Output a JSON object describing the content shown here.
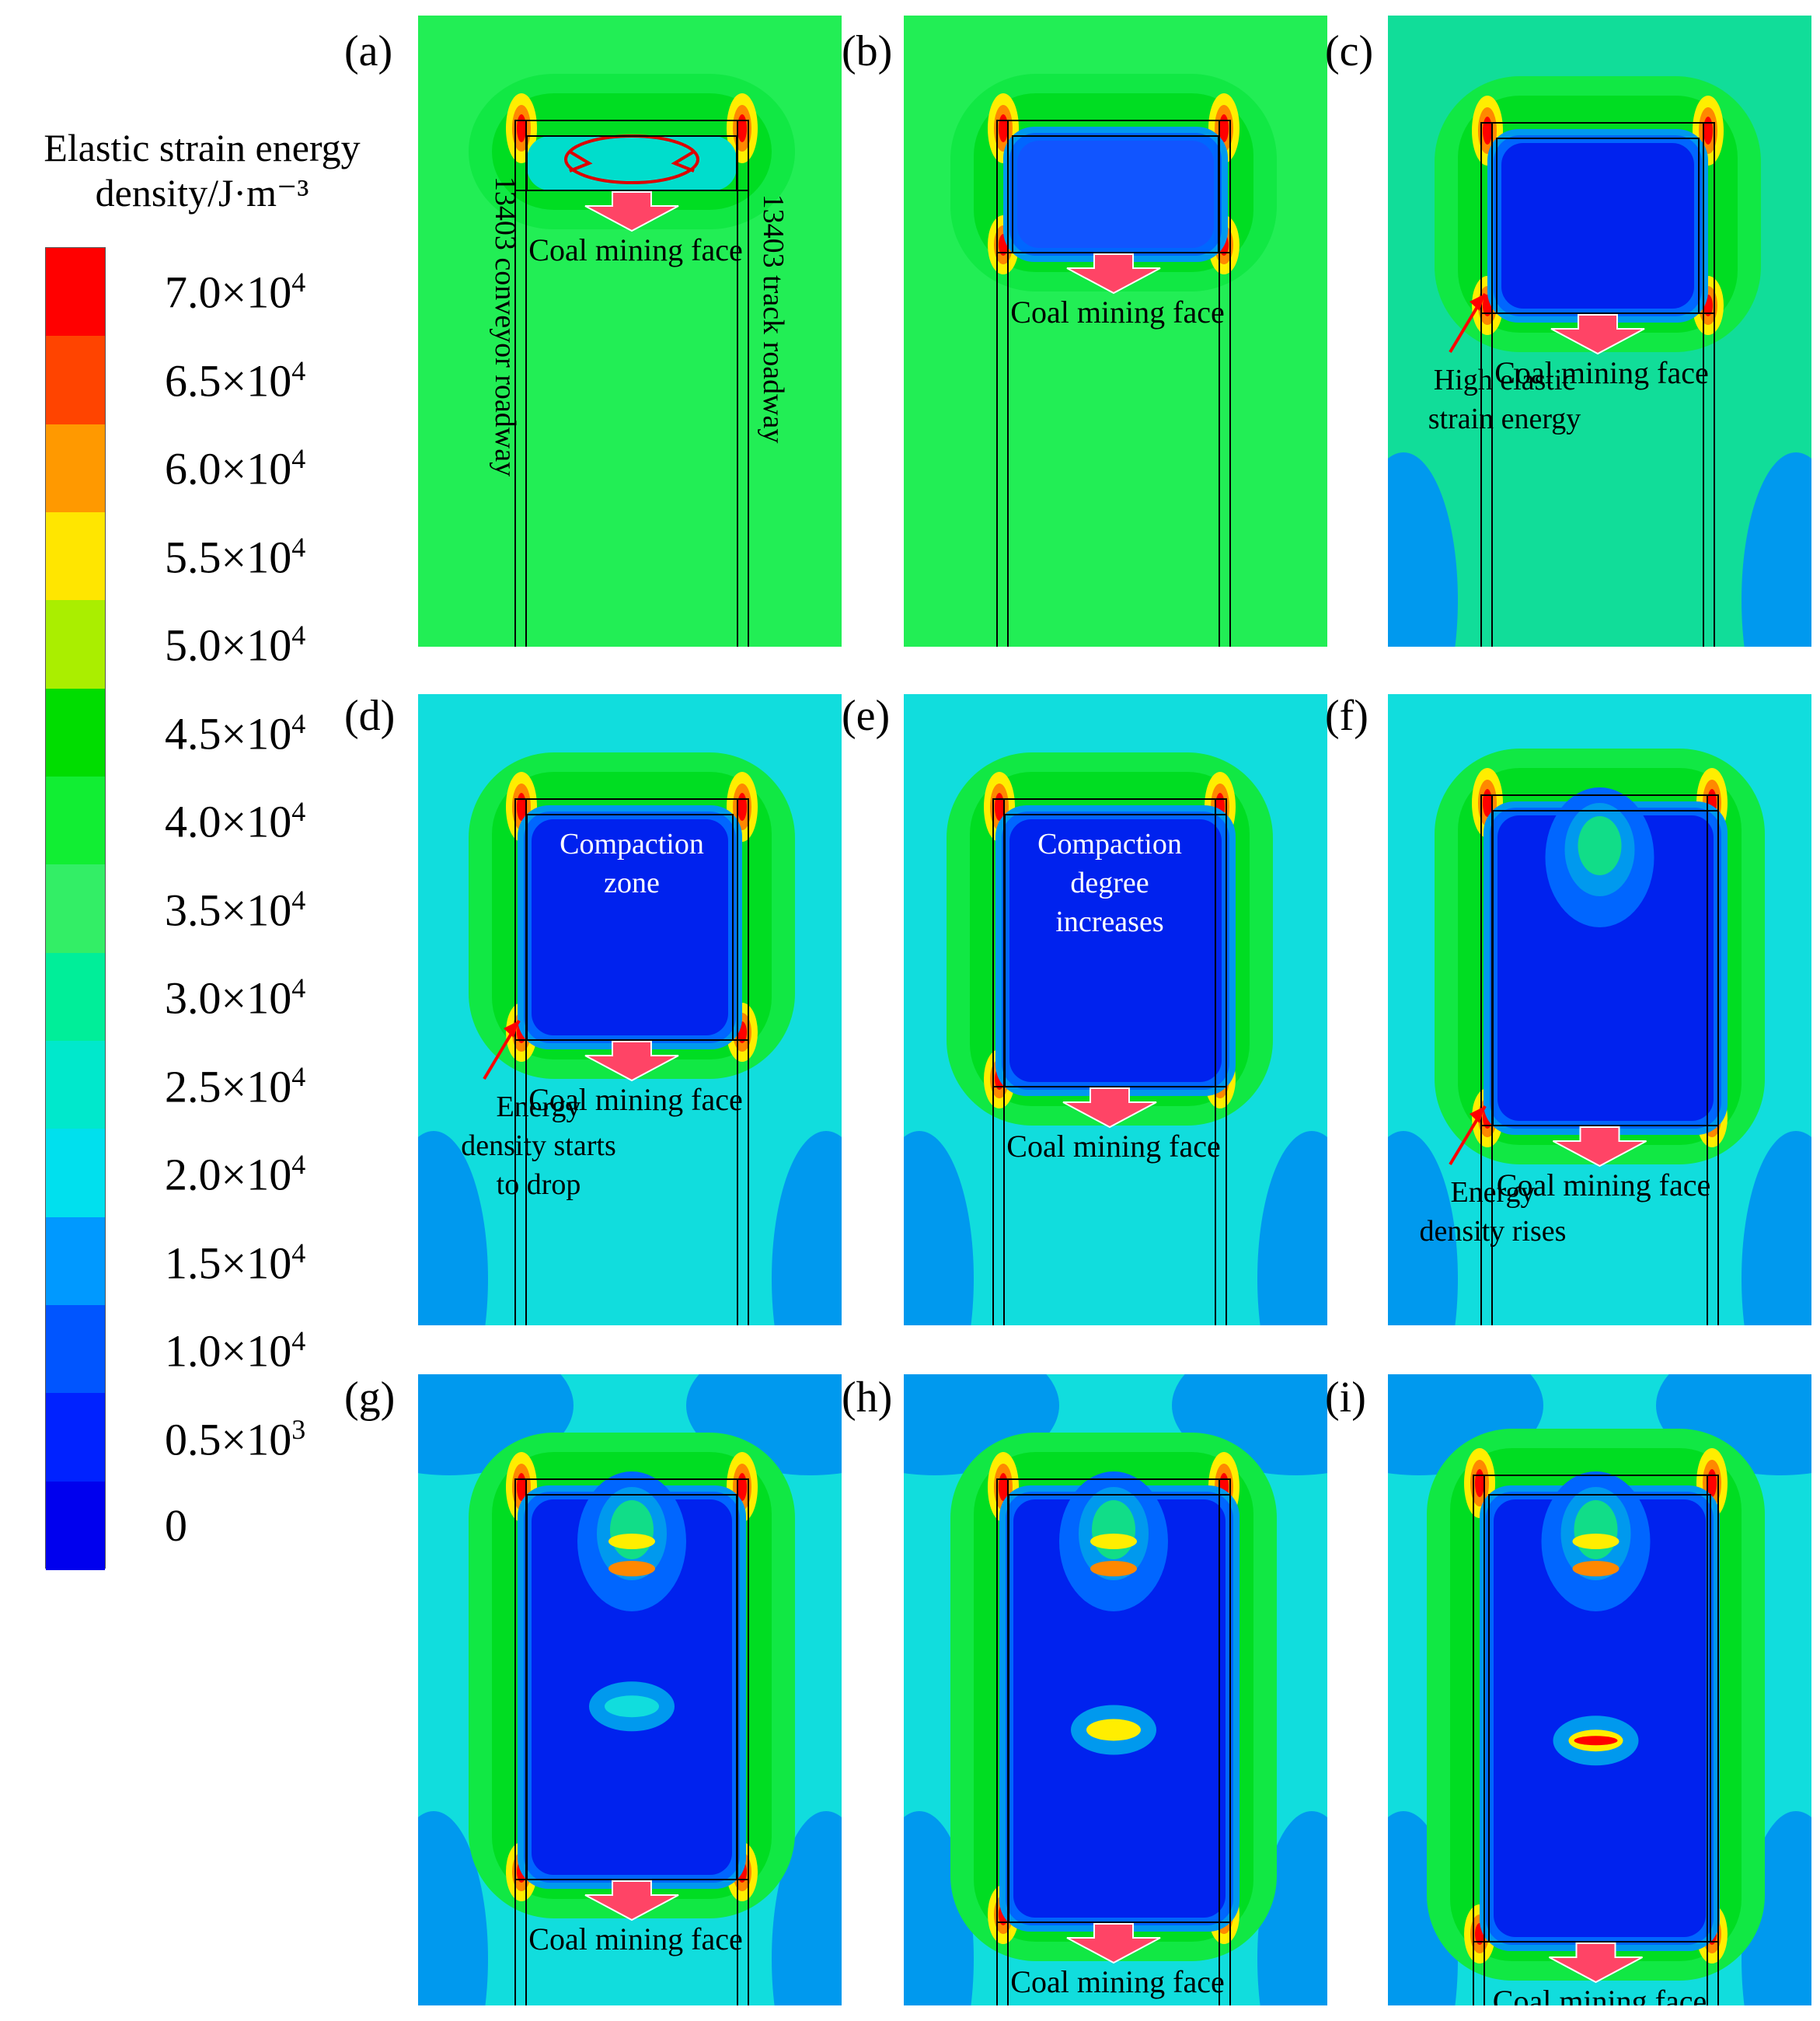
{
  "legend": {
    "title_line1": "Elastic strain energy",
    "title_line2": "density/J·m⁻³",
    "ticks": [
      {
        "mantissa": "7.0×10",
        "exp": "4"
      },
      {
        "mantissa": "6.5×10",
        "exp": "4"
      },
      {
        "mantissa": "6.0×10",
        "exp": "4"
      },
      {
        "mantissa": "5.5×10",
        "exp": "4"
      },
      {
        "mantissa": "5.0×10",
        "exp": "4"
      },
      {
        "mantissa": "4.5×10",
        "exp": "4"
      },
      {
        "mantissa": "4.0×10",
        "exp": "4"
      },
      {
        "mantissa": "3.5×10",
        "exp": "4"
      },
      {
        "mantissa": "3.0×10",
        "exp": "4"
      },
      {
        "mantissa": "2.5×10",
        "exp": "4"
      },
      {
        "mantissa": "2.0×10",
        "exp": "4"
      },
      {
        "mantissa": "1.5×10",
        "exp": "4"
      },
      {
        "mantissa": "1.0×10",
        "exp": "4"
      },
      {
        "mantissa": "0.5×10",
        "exp": "3"
      },
      {
        "mantissa": "0",
        "exp": ""
      }
    ],
    "colors": [
      "#ff0000",
      "#ff4400",
      "#ff9900",
      "#ffe600",
      "#aaee00",
      "#00dd00",
      "#11ee33",
      "#33ee66",
      "#00ee99",
      "#00e8cc",
      "#00e0ee",
      "#0099ff",
      "#0055ff",
      "#0022ff",
      "#0000ee"
    ]
  },
  "colors": {
    "background": "#22ee55",
    "far_field": "#11dddd",
    "deep_blue": "#0022ee",
    "mid_blue": "#0066ff",
    "light_blue": "#0099ee",
    "red": "#ff0000",
    "orange": "#ff8800",
    "yellow": "#ffee00",
    "arrow": "#ff4466"
  },
  "panels": [
    {
      "label": "(a)",
      "face_text": "Coal mining face",
      "roadway_left": "13403 conveyor roadway",
      "roadway_right": "13403 track roadway"
    },
    {
      "label": "(b)",
      "face_text": "Coal mining face"
    },
    {
      "label": "(c)",
      "face_text": "Coal mining face",
      "note_line1": "High elastic",
      "note_line2": "strain energy"
    },
    {
      "label": "(d)",
      "face_text": "Coal mining face",
      "zone_line1": "Compaction",
      "zone_line2": "zone",
      "note_line1": "Energy",
      "note_line2": "density starts",
      "note_line3": "to drop"
    },
    {
      "label": "(e)",
      "face_text": "Coal mining face",
      "zone_line1": "Compaction",
      "zone_line2": "degree",
      "zone_line3": "increases"
    },
    {
      "label": "(f)",
      "face_text": "Coal mining face",
      "note_line1": "Energy",
      "note_line2": "density rises"
    },
    {
      "label": "(g)",
      "face_text": "Coal mining face"
    },
    {
      "label": "(h)",
      "face_text": "Coal mining face"
    },
    {
      "label": "(i)",
      "face_text": "Coal mining face"
    }
  ]
}
